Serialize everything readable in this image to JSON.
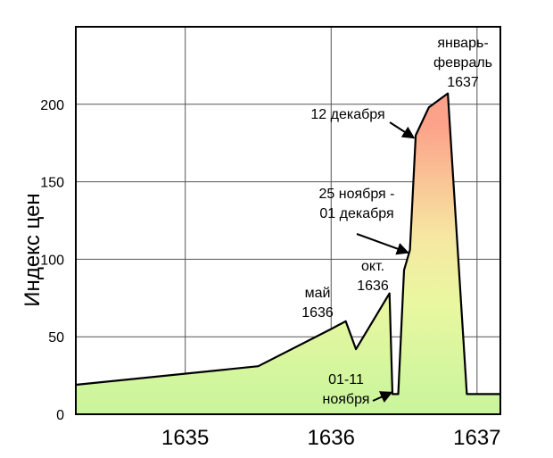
{
  "chart_data": {
    "type": "area",
    "ylabel": "Индекс цен",
    "xlim": [
      1634.25,
      1637.16
    ],
    "ylim": [
      0,
      250
    ],
    "x_ticks": [
      1635,
      1636,
      1637
    ],
    "x_tick_labels": [
      "1635",
      "1636",
      "1637"
    ],
    "y_ticks": [
      0,
      50,
      100,
      150,
      200
    ],
    "y_tick_labels": [
      "0",
      "50",
      "100",
      "150",
      "200"
    ],
    "grid": true,
    "x": [
      1634.25,
      1635.5,
      1636.0,
      1636.1,
      1636.17,
      1636.4,
      1636.42,
      1636.46,
      1636.5,
      1636.54,
      1636.58,
      1636.67,
      1636.8,
      1636.93,
      1637.16
    ],
    "y": [
      19,
      31,
      55,
      60,
      42,
      78,
      13,
      13,
      93,
      106,
      180,
      198,
      207,
      13,
      13
    ],
    "fill_gradient": {
      "low": "#c8f59c",
      "mid": "#f5f0a5",
      "high": "#fca28a"
    },
    "annotations": [
      {
        "lines": [
          "январь-",
          "февраль",
          "1637"
        ],
        "x": 1636.8,
        "y": 207,
        "arrow": false
      },
      {
        "lines": [
          "12 декабря"
        ],
        "x": 1636.58,
        "y": 180,
        "arrow": true
      },
      {
        "lines": [
          "25 ноября -",
          "01 декабря"
        ],
        "x": 1636.54,
        "y": 106,
        "arrow": true
      },
      {
        "lines": [
          "окт.",
          "1636"
        ],
        "x": 1636.4,
        "y": 78,
        "arrow": false
      },
      {
        "lines": [
          "май",
          "1636"
        ],
        "x": 1636.0,
        "y": 60,
        "arrow": false
      },
      {
        "lines": [
          "01-11",
          "ноября"
        ],
        "x": 1636.44,
        "y": 13,
        "arrow": true
      }
    ]
  }
}
